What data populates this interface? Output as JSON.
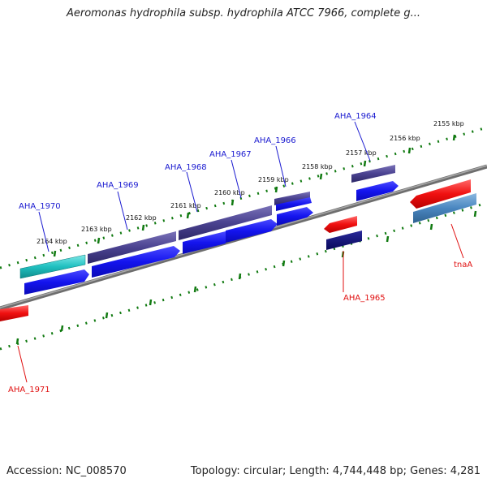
{
  "title": "Aeromonas hydrophila subsp. hydrophila ATCC 7966, complete g...",
  "footer": {
    "accession": "Accession: NC_008570",
    "summary": "Topology: circular; Length: 4,744,448 bp; Genes: 4,281"
  },
  "colors": {
    "label_forward": "#1a1ad0",
    "label_reverse": "#e01010",
    "tick": "#117a11",
    "backbone": "#888888"
  },
  "scale_labels": [
    "2164 kbp",
    "2163 kbp",
    "2162 kbp",
    "2161 kbp",
    "2160 kbp",
    "2159 kbp",
    "2158 kbp",
    "2157 kbp",
    "2156 kbp",
    "2155 kbp"
  ],
  "gene_labels": {
    "AHA_1970": "AHA_1970",
    "AHA_1969": "AHA_1969",
    "AHA_1968": "AHA_1968",
    "AHA_1967": "AHA_1967",
    "AHA_1966": "AHA_1966",
    "AHA_1964": "AHA_1964",
    "AHA_1965": "AHA_1965",
    "tnaA": "tnaA",
    "AHA_1971": "AHA_1971"
  }
}
